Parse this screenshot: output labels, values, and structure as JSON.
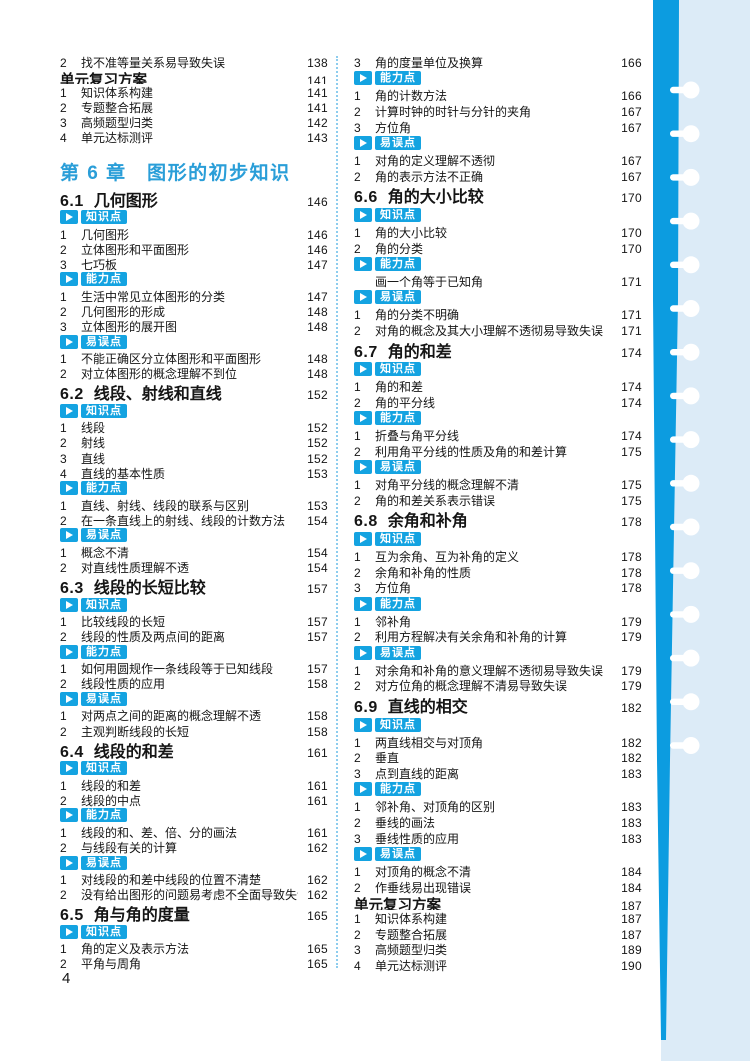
{
  "page_number": "4",
  "colors": {
    "accent_blue": "#14a3e1",
    "chapter_blue": "#2a9ed8",
    "panel_light_blue": "#dcebf7",
    "bar_blue": "#0c9ce0"
  },
  "badges": {
    "knowledge": "知识点",
    "ability": "能力点",
    "error": "易误点"
  },
  "left_column": [
    {
      "t": "item",
      "n": "2",
      "x": "找不准等量关系易导致失误",
      "p": "138"
    },
    {
      "t": "unit",
      "x": "单元复习方案",
      "p": "141"
    },
    {
      "t": "item",
      "n": "1",
      "x": "知识体系构建",
      "p": "141"
    },
    {
      "t": "item",
      "n": "2",
      "x": "专题整合拓展",
      "p": "141"
    },
    {
      "t": "item",
      "n": "3",
      "x": "高频题型归类",
      "p": "142"
    },
    {
      "t": "item",
      "n": "4",
      "x": "单元达标测评",
      "p": "143"
    },
    {
      "t": "chapter",
      "x": "第 6 章　图形的初步知识"
    },
    {
      "t": "section",
      "n": "6.1",
      "x": "几何图形",
      "p": "146"
    },
    {
      "t": "badge",
      "k": "knowledge"
    },
    {
      "t": "item",
      "n": "1",
      "x": "几何图形",
      "p": "146"
    },
    {
      "t": "item",
      "n": "2",
      "x": "立体图形和平面图形",
      "p": "146"
    },
    {
      "t": "item",
      "n": "3",
      "x": "七巧板",
      "p": "147"
    },
    {
      "t": "badge",
      "k": "ability"
    },
    {
      "t": "item",
      "n": "1",
      "x": "生活中常见立体图形的分类",
      "p": "147"
    },
    {
      "t": "item",
      "n": "2",
      "x": "几何图形的形成",
      "p": "148"
    },
    {
      "t": "item",
      "n": "3",
      "x": "立体图形的展开图",
      "p": "148"
    },
    {
      "t": "badge",
      "k": "error"
    },
    {
      "t": "item",
      "n": "1",
      "x": "不能正确区分立体图形和平面图形",
      "p": "148"
    },
    {
      "t": "item",
      "n": "2",
      "x": "对立体图形的概念理解不到位",
      "p": "148"
    },
    {
      "t": "section",
      "n": "6.2",
      "x": "线段、射线和直线",
      "p": "152"
    },
    {
      "t": "badge",
      "k": "knowledge"
    },
    {
      "t": "item",
      "n": "1",
      "x": "线段",
      "p": "152"
    },
    {
      "t": "item",
      "n": "2",
      "x": "射线",
      "p": "152"
    },
    {
      "t": "item",
      "n": "3",
      "x": "直线",
      "p": "152"
    },
    {
      "t": "item",
      "n": "4",
      "x": "直线的基本性质",
      "p": "153"
    },
    {
      "t": "badge",
      "k": "ability"
    },
    {
      "t": "item",
      "n": "1",
      "x": "直线、射线、线段的联系与区别",
      "p": "153"
    },
    {
      "t": "item",
      "n": "2",
      "x": "在一条直线上的射线、线段的计数方法",
      "p": "154"
    },
    {
      "t": "badge",
      "k": "error"
    },
    {
      "t": "item",
      "n": "1",
      "x": "概念不清",
      "p": "154"
    },
    {
      "t": "item",
      "n": "2",
      "x": "对直线性质理解不透",
      "p": "154"
    },
    {
      "t": "section",
      "n": "6.3",
      "x": "线段的长短比较",
      "p": "157"
    },
    {
      "t": "badge",
      "k": "knowledge"
    },
    {
      "t": "item",
      "n": "1",
      "x": "比较线段的长短",
      "p": "157"
    },
    {
      "t": "item",
      "n": "2",
      "x": "线段的性质及两点间的距离",
      "p": "157"
    },
    {
      "t": "badge",
      "k": "ability"
    },
    {
      "t": "item",
      "n": "1",
      "x": "如何用圆规作一条线段等于已知线段",
      "p": "157"
    },
    {
      "t": "item",
      "n": "2",
      "x": "线段性质的应用",
      "p": "158"
    },
    {
      "t": "badge",
      "k": "error"
    },
    {
      "t": "item",
      "n": "1",
      "x": "对两点之间的距离的概念理解不透",
      "p": "158"
    },
    {
      "t": "item",
      "n": "2",
      "x": "主观判断线段的长短",
      "p": "158"
    },
    {
      "t": "section",
      "n": "6.4",
      "x": "线段的和差",
      "p": "161"
    },
    {
      "t": "badge",
      "k": "knowledge"
    },
    {
      "t": "item",
      "n": "1",
      "x": "线段的和差",
      "p": "161"
    },
    {
      "t": "item",
      "n": "2",
      "x": "线段的中点",
      "p": "161"
    },
    {
      "t": "badge",
      "k": "ability"
    },
    {
      "t": "item",
      "n": "1",
      "x": "线段的和、差、倍、分的画法",
      "p": "161"
    },
    {
      "t": "item",
      "n": "2",
      "x": "与线段有关的计算",
      "p": "162"
    },
    {
      "t": "badge",
      "k": "error"
    },
    {
      "t": "item",
      "n": "1",
      "x": "对线段的和差中线段的位置不清楚",
      "p": "162"
    },
    {
      "t": "item",
      "n": "2",
      "x": "没有给出图形的问题易考虑不全面导致失误",
      "p": "162"
    },
    {
      "t": "section",
      "n": "6.5",
      "x": "角与角的度量",
      "p": "165"
    },
    {
      "t": "badge",
      "k": "knowledge"
    },
    {
      "t": "item",
      "n": "1",
      "x": "角的定义及表示方法",
      "p": "165"
    },
    {
      "t": "item",
      "n": "2",
      "x": "平角与周角",
      "p": "165"
    }
  ],
  "right_column": [
    {
      "t": "item",
      "n": "3",
      "x": "角的度量单位及换算",
      "p": "166"
    },
    {
      "t": "badge",
      "k": "ability"
    },
    {
      "t": "item",
      "n": "1",
      "x": "角的计数方法",
      "p": "166"
    },
    {
      "t": "item",
      "n": "2",
      "x": "计算时钟的时针与分针的夹角",
      "p": "167"
    },
    {
      "t": "item",
      "n": "3",
      "x": "方位角",
      "p": "167"
    },
    {
      "t": "badge",
      "k": "error"
    },
    {
      "t": "item",
      "n": "1",
      "x": "对角的定义理解不透彻",
      "p": "167"
    },
    {
      "t": "item",
      "n": "2",
      "x": "角的表示方法不正确",
      "p": "167"
    },
    {
      "t": "section",
      "n": "6.6",
      "x": "角的大小比较",
      "p": "170"
    },
    {
      "t": "badge",
      "k": "knowledge"
    },
    {
      "t": "item",
      "n": "1",
      "x": "角的大小比较",
      "p": "170"
    },
    {
      "t": "item",
      "n": "2",
      "x": "角的分类",
      "p": "170"
    },
    {
      "t": "badge",
      "k": "ability"
    },
    {
      "t": "plain",
      "x": "画一个角等于已知角",
      "p": "171"
    },
    {
      "t": "badge",
      "k": "error"
    },
    {
      "t": "item",
      "n": "1",
      "x": "角的分类不明确",
      "p": "171"
    },
    {
      "t": "item",
      "n": "2",
      "x": "对角的概念及其大小理解不透彻易导致失误",
      "p": "171"
    },
    {
      "t": "section",
      "n": "6.7",
      "x": "角的和差",
      "p": "174"
    },
    {
      "t": "badge",
      "k": "knowledge"
    },
    {
      "t": "item",
      "n": "1",
      "x": "角的和差",
      "p": "174"
    },
    {
      "t": "item",
      "n": "2",
      "x": "角的平分线",
      "p": "174"
    },
    {
      "t": "badge",
      "k": "ability"
    },
    {
      "t": "item",
      "n": "1",
      "x": "折叠与角平分线",
      "p": "174"
    },
    {
      "t": "item",
      "n": "2",
      "x": "利用角平分线的性质及角的和差计算",
      "p": "175"
    },
    {
      "t": "badge",
      "k": "error"
    },
    {
      "t": "item",
      "n": "1",
      "x": "对角平分线的概念理解不清",
      "p": "175"
    },
    {
      "t": "item",
      "n": "2",
      "x": "角的和差关系表示错误",
      "p": "175"
    },
    {
      "t": "section",
      "n": "6.8",
      "x": "余角和补角",
      "p": "178"
    },
    {
      "t": "badge",
      "k": "knowledge"
    },
    {
      "t": "item",
      "n": "1",
      "x": "互为余角、互为补角的定义",
      "p": "178"
    },
    {
      "t": "item",
      "n": "2",
      "x": "余角和补角的性质",
      "p": "178"
    },
    {
      "t": "item",
      "n": "3",
      "x": "方位角",
      "p": "178"
    },
    {
      "t": "badge",
      "k": "ability"
    },
    {
      "t": "item",
      "n": "1",
      "x": "邻补角",
      "p": "179"
    },
    {
      "t": "item",
      "n": "2",
      "x": "利用方程解决有关余角和补角的计算",
      "p": "179"
    },
    {
      "t": "badge",
      "k": "error"
    },
    {
      "t": "item",
      "n": "1",
      "x": "对余角和补角的意义理解不透彻易导致失误",
      "p": "179"
    },
    {
      "t": "item",
      "n": "2",
      "x": "对方位角的概念理解不清易导致失误",
      "p": "179"
    },
    {
      "t": "section",
      "n": "6.9",
      "x": "直线的相交",
      "p": "182"
    },
    {
      "t": "badge",
      "k": "knowledge"
    },
    {
      "t": "item",
      "n": "1",
      "x": "两直线相交与对顶角",
      "p": "182"
    },
    {
      "t": "item",
      "n": "2",
      "x": "垂直",
      "p": "182"
    },
    {
      "t": "item",
      "n": "3",
      "x": "点到直线的距离",
      "p": "183"
    },
    {
      "t": "badge",
      "k": "ability"
    },
    {
      "t": "item",
      "n": "1",
      "x": "邻补角、对顶角的区别",
      "p": "183"
    },
    {
      "t": "item",
      "n": "2",
      "x": "垂线的画法",
      "p": "183"
    },
    {
      "t": "item",
      "n": "3",
      "x": "垂线性质的应用",
      "p": "183"
    },
    {
      "t": "badge",
      "k": "error"
    },
    {
      "t": "item",
      "n": "1",
      "x": "对顶角的概念不清",
      "p": "184"
    },
    {
      "t": "item",
      "n": "2",
      "x": "作垂线易出现错误",
      "p": "184"
    },
    {
      "t": "unit",
      "x": "单元复习方案",
      "p": "187"
    },
    {
      "t": "item",
      "n": "1",
      "x": "知识体系构建",
      "p": "187"
    },
    {
      "t": "item",
      "n": "2",
      "x": "专题整合拓展",
      "p": "187"
    },
    {
      "t": "item",
      "n": "3",
      "x": "高频题型归类",
      "p": "189"
    },
    {
      "t": "item",
      "n": "4",
      "x": "单元达标测评",
      "p": "190"
    }
  ]
}
